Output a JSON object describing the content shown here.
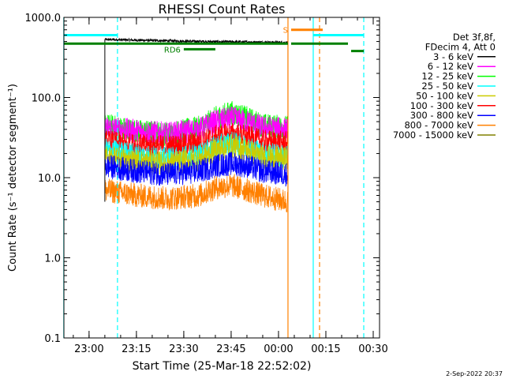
{
  "chart_data": {
    "type": "line",
    "title": "RHESSI Count Rates",
    "xlabel": "Start Time (25-Mar-18 22:52:02)",
    "ylabel": "Count Rate (s⁻¹ detector segment⁻¹)",
    "y_scale": "log",
    "ylim": [
      0.1,
      1000.0
    ],
    "y_ticks": [
      "0.1",
      "1.0",
      "10.0",
      "100.0",
      "1000.0"
    ],
    "xlim": [
      "22:52:02",
      "00:32:00"
    ],
    "x_ticks": [
      "23:00",
      "23:15",
      "23:30",
      "23:45",
      "00:00",
      "00:15",
      "00:30"
    ],
    "legend_position": "right",
    "legend_header": [
      "Det 3f,8f,",
      "FDecim 4, Att 0"
    ],
    "legend": [
      {
        "label": "3 - 6 keV",
        "color": "#000000"
      },
      {
        "label": "6 - 12 keV",
        "color": "#ff00ff"
      },
      {
        "label": "12 - 25 keV",
        "color": "#00ff00"
      },
      {
        "label": "25 - 50 keV",
        "color": "#00ffff"
      },
      {
        "label": "50 - 100 keV",
        "color": "#cccc00"
      },
      {
        "label": "100 - 300 keV",
        "color": "#ff0000"
      },
      {
        "label": "300 - 800 keV",
        "color": "#0000ff"
      },
      {
        "label": "800 - 7000 keV",
        "color": "#ff8000"
      },
      {
        "label": "7000 - 15000 keV",
        "color": "#808000"
      }
    ],
    "data_start": "23:05",
    "data_end": "00:03",
    "series": [
      {
        "name": "3 - 6 keV",
        "color": "#000000",
        "x": [
          "23:05",
          "23:15",
          "23:25",
          "23:35",
          "23:45",
          "23:55",
          "00:03"
        ],
        "y": [
          530,
          520,
          510,
          500,
          495,
          490,
          485
        ]
      },
      {
        "name": "6 - 12 keV",
        "color": "#ff00ff",
        "x": [
          "23:05",
          "23:15",
          "23:25",
          "23:35",
          "23:40",
          "23:45",
          "23:50",
          "23:55",
          "00:03"
        ],
        "y": [
          42,
          38,
          35,
          40,
          50,
          55,
          50,
          42,
          40
        ]
      },
      {
        "name": "12 - 25 keV",
        "color": "#00ff00",
        "x": [
          "23:05",
          "23:15",
          "23:25",
          "23:35",
          "23:40",
          "23:45",
          "23:50",
          "23:55",
          "00:03"
        ],
        "y": [
          45,
          38,
          35,
          42,
          55,
          65,
          55,
          45,
          42
        ]
      },
      {
        "name": "25 - 50 keV",
        "color": "#00ffff",
        "x": [
          "23:05",
          "23:15",
          "23:25",
          "23:35",
          "23:40",
          "23:45",
          "23:50",
          "23:55",
          "00:03"
        ],
        "y": [
          22,
          19,
          17,
          19,
          24,
          27,
          24,
          20,
          18
        ]
      },
      {
        "name": "50 - 100 keV",
        "color": "#cccc00",
        "x": [
          "23:05",
          "23:15",
          "23:25",
          "23:35",
          "23:40",
          "23:45",
          "23:50",
          "23:55",
          "00:03"
        ],
        "y": [
          18,
          16,
          15,
          17,
          22,
          25,
          22,
          18,
          17
        ]
      },
      {
        "name": "100 - 300 keV",
        "color": "#ff0000",
        "x": [
          "23:05",
          "23:15",
          "23:25",
          "23:35",
          "23:40",
          "23:45",
          "23:50",
          "23:55",
          "00:03"
        ],
        "y": [
          28,
          25,
          24,
          27,
          32,
          35,
          32,
          28,
          27
        ]
      },
      {
        "name": "300 - 800 keV",
        "color": "#0000ff",
        "x": [
          "23:05",
          "23:15",
          "23:25",
          "23:35",
          "23:40",
          "23:45",
          "23:50",
          "23:55",
          "00:03"
        ],
        "y": [
          14,
          12,
          11,
          12,
          14,
          15,
          14,
          12,
          11
        ]
      },
      {
        "name": "800 - 7000 keV",
        "color": "#ff8000",
        "x": [
          "23:05",
          "23:15",
          "23:25",
          "23:35",
          "23:40",
          "23:45",
          "23:50",
          "23:55",
          "00:03"
        ],
        "y": [
          7,
          6,
          5.5,
          6,
          7.5,
          8,
          7,
          6,
          5
        ]
      }
    ],
    "vertical_lines": [
      {
        "x": "22:52",
        "color": "#00ffff",
        "style": "solid"
      },
      {
        "x": "23:09",
        "color": "#00ffff",
        "style": "dashed"
      },
      {
        "x": "00:03",
        "color": "#ff8000",
        "style": "solid"
      },
      {
        "x": "00:11",
        "color": "#00ffff",
        "style": "solid"
      },
      {
        "x": "00:13",
        "color": "#ff8000",
        "style": "dashed"
      },
      {
        "x": "00:27",
        "color": "#00ffff",
        "style": "dashed"
      }
    ],
    "flag_bars": [
      {
        "color": "#00ffff",
        "y": 600,
        "ranges": [
          [
            "22:52",
            "23:09"
          ],
          [
            "00:11",
            "00:27"
          ]
        ]
      },
      {
        "color": "#008000",
        "y": 470,
        "ranges": [
          [
            "22:52",
            "00:03"
          ],
          [
            "00:04",
            "00:22"
          ]
        ]
      },
      {
        "color": "#008000",
        "y": 380,
        "ranges": [
          [
            "00:23",
            "00:27"
          ]
        ]
      },
      {
        "color": "#008000",
        "y": 400,
        "label": "RD6",
        "ranges": [
          [
            "23:30",
            "23:40"
          ]
        ]
      },
      {
        "color": "#ff8000",
        "y": 700,
        "label": "S",
        "ranges": [
          [
            "00:04",
            "00:14"
          ]
        ]
      }
    ],
    "footer_date": "2-Sep-2022 20:37"
  }
}
